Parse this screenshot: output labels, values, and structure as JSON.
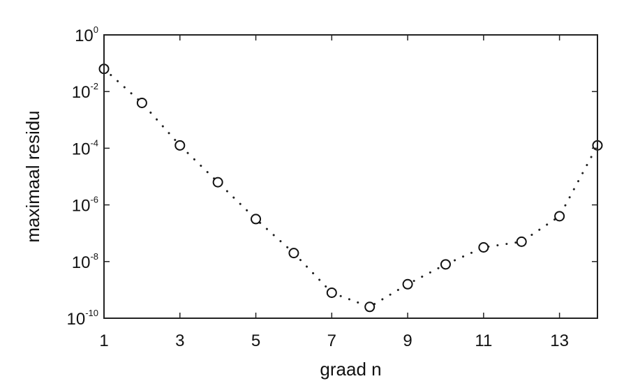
{
  "chart_data": {
    "type": "scatter",
    "title": "",
    "xlabel": "graad n",
    "ylabel": "maximaal residu",
    "xlim": [
      1,
      14
    ],
    "ylim_log10": [
      -10,
      0
    ],
    "yscale": "log",
    "grid": false,
    "legend": "none",
    "marker": "circle-open",
    "connector": "dotted",
    "x_ticks": [
      "1",
      "3",
      "5",
      "7",
      "9",
      "11",
      "13"
    ],
    "y_ticks": [
      {
        "base": "10",
        "exp": "0"
      },
      {
        "base": "10",
        "exp": "-2"
      },
      {
        "base": "10",
        "exp": "-4"
      },
      {
        "base": "10",
        "exp": "-6"
      },
      {
        "base": "10",
        "exp": "-8"
      },
      {
        "base": "10",
        "exp": "-10"
      }
    ],
    "series": [
      {
        "x": [
          1,
          2,
          3,
          4,
          5,
          6,
          7,
          8,
          9,
          10,
          11,
          12,
          13,
          14
        ],
        "y_log10": [
          -1.2,
          -2.4,
          -3.9,
          -5.2,
          -6.5,
          -7.7,
          -9.1,
          -9.6,
          -8.8,
          -8.1,
          -7.5,
          -7.3,
          -6.4,
          -3.9
        ]
      }
    ]
  }
}
